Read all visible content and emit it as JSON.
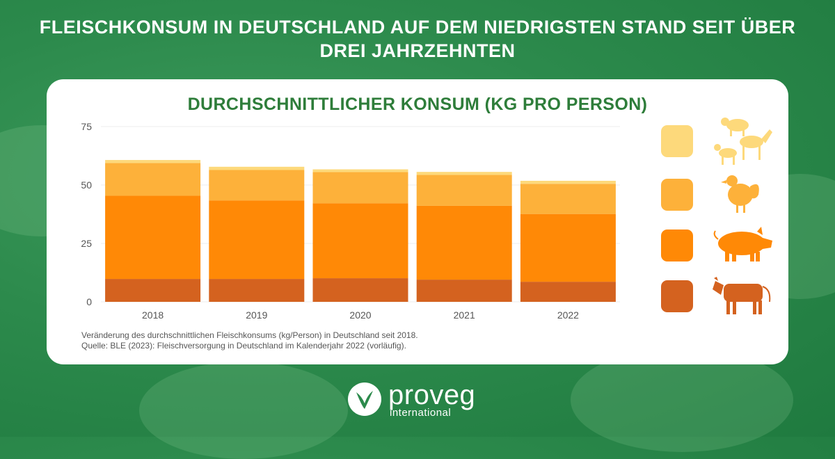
{
  "headline": {
    "line1": "FLEISCHKONSUM IN DEUTSCHLAND AUF DEM NIEDRIGSTEN STAND SEIT ÜBER",
    "line2": "DREI JAHRZEHNTEN"
  },
  "caption": {
    "line1": "Veränderung des durchschnittlichen Fleischkonsums (kg/Person) in Deutschland seit 2018.",
    "line2": "Quelle: BLE (2023): Fleischversorgung in Deutschland im Kalenderjahr 2022 (vorläufig)."
  },
  "legend": [
    {
      "icon": "sheep-goat-horse-icon",
      "color": "#fdd97b"
    },
    {
      "icon": "chicken-icon",
      "color": "#fdb13a"
    },
    {
      "icon": "pig-icon",
      "color": "#ff8906"
    },
    {
      "icon": "cow-icon",
      "color": "#d4621f"
    }
  ],
  "logo": {
    "word": "proveg",
    "sub": "international"
  },
  "chart_data": {
    "type": "bar",
    "stacked": true,
    "title": "DURCHSCHNITTLICHER KONSUM (KG PRO PERSON)",
    "categories": [
      "2018",
      "2019",
      "2020",
      "2021",
      "2022"
    ],
    "ylim": [
      0,
      75
    ],
    "yticks": [
      0,
      25,
      50,
      75
    ],
    "grid": true,
    "legend_position": "right",
    "series": [
      {
        "color": "#d4621f",
        "values": [
          9.8,
          9.8,
          10.1,
          9.5,
          8.6
        ]
      },
      {
        "color": "#ff8906",
        "values": [
          35.6,
          33.6,
          32.1,
          31.6,
          29.0
        ]
      },
      {
        "color": "#fdb13a",
        "values": [
          14.0,
          13.0,
          13.3,
          13.2,
          12.9
        ]
      },
      {
        "color": "#fdd97b",
        "values": [
          1.3,
          1.4,
          1.2,
          1.3,
          1.3
        ]
      }
    ]
  }
}
